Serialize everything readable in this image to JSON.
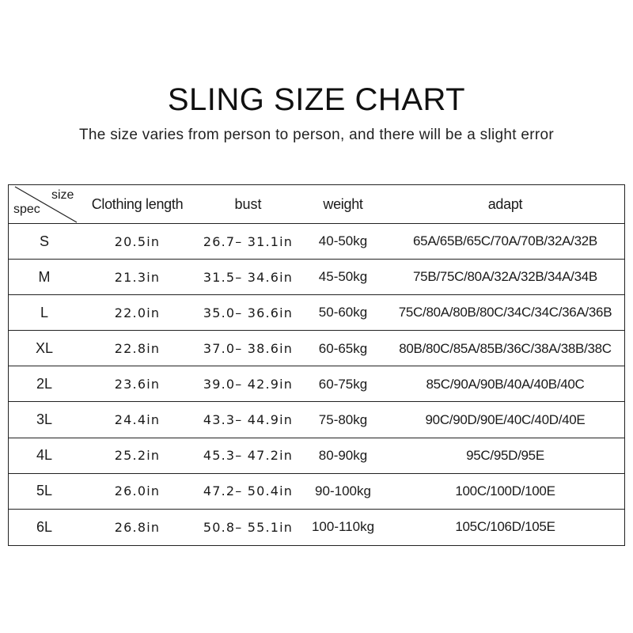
{
  "title": "SLING SIZE CHART",
  "subtitle": "The size varies from person to person, and there will be a slight error",
  "table": {
    "corner": {
      "top_label": "size",
      "bottom_label": "spec"
    },
    "headers": [
      "Clothing length",
      "bust",
      "weight",
      "adapt"
    ],
    "rows": [
      [
        "S",
        "20.5in",
        "26.7– 31.1in",
        "40-50kg",
        "65A/65B/65C/70A/70B/32A/32B"
      ],
      [
        "M",
        "21.3in",
        "31.5– 34.6in",
        "45-50kg",
        "75B/75C/80A/32A/32B/34A/34B"
      ],
      [
        "L",
        "22.0in",
        "35.0– 36.6in",
        "50-60kg",
        "75C/80A/80B/80C/34C/34C/36A/36B"
      ],
      [
        "XL",
        "22.8in",
        "37.0– 38.6in",
        "60-65kg",
        "80B/80C/85A/85B/36C/38A/38B/38C"
      ],
      [
        "2L",
        "23.6in",
        "39.0– 42.9in",
        "60-75kg",
        "85C/90A/90B/40A/40B/40C"
      ],
      [
        "3L",
        "24.4in",
        "43.3– 44.9in",
        "75-80kg",
        "90C/90D/90E/40C/40D/40E"
      ],
      [
        "4L",
        "25.2in",
        "45.3– 47.2in",
        "80-90kg",
        "95C/95D/95E"
      ],
      [
        "5L",
        "26.0in",
        "47.2– 50.4in",
        "90-100kg",
        "100C/100D/100E"
      ],
      [
        "6L",
        "26.8in",
        "50.8– 55.1in",
        "100-110kg",
        "105C/106D/105E"
      ]
    ]
  }
}
